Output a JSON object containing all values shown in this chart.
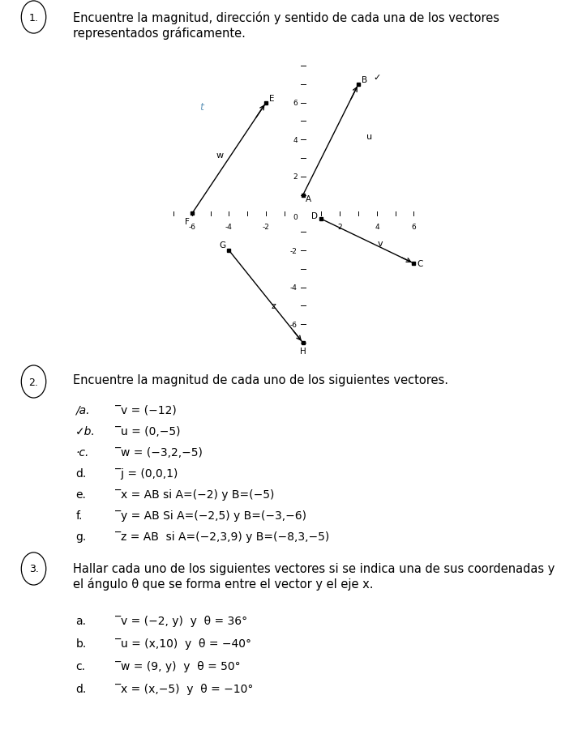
{
  "title1_text": "Encuentre la magnitud, dirección y sentido de cada una de los vectores\nrepresentados gráficamente.",
  "title2_text": "Encuentre la magnitud de cada uno de los siguientes vectores.",
  "title3_text": "Hallar cada uno de los siguientes vectores si se indica una de sus coordenadas y\nel ángulo θ que se forma entre el vector y el eje x.",
  "sec2_prefix": [
    "/a.",
    "✓b.",
    "·c.",
    "d.",
    "e.",
    "f.",
    "g."
  ],
  "sec2_labels": [
    "̅v",
    "̅u",
    "̅w",
    "̅j",
    "̅x",
    "̅y",
    "̅z"
  ],
  "sec2_texts": [
    " = (−12)",
    " = (0,−5)",
    " = (−3,2,−5)",
    " = (0,0,1)",
    " = AB si A=(−2) y B=(−5)",
    " = AB Si A=(−2,5) y B=(−3,−6)",
    " = AB  si A=(−2,3,9) y B=(−8,3,−5)"
  ],
  "sec3_prefix": [
    "a.",
    "b.",
    "c.",
    "d."
  ],
  "sec3_labels": [
    "̅v",
    "̅u",
    "̅w",
    "̅x"
  ],
  "sec3_texts": [
    " = (−2, y)  y  θ = 36°",
    " = (x,10)  y  θ = −40°",
    " = (9, y)  y  θ = 50°",
    " = (x,−5)  y  θ = −10°"
  ],
  "graph_xlim": [
    -7,
    7
  ],
  "graph_ylim": [
    -8,
    8
  ],
  "bg": "#ffffff"
}
